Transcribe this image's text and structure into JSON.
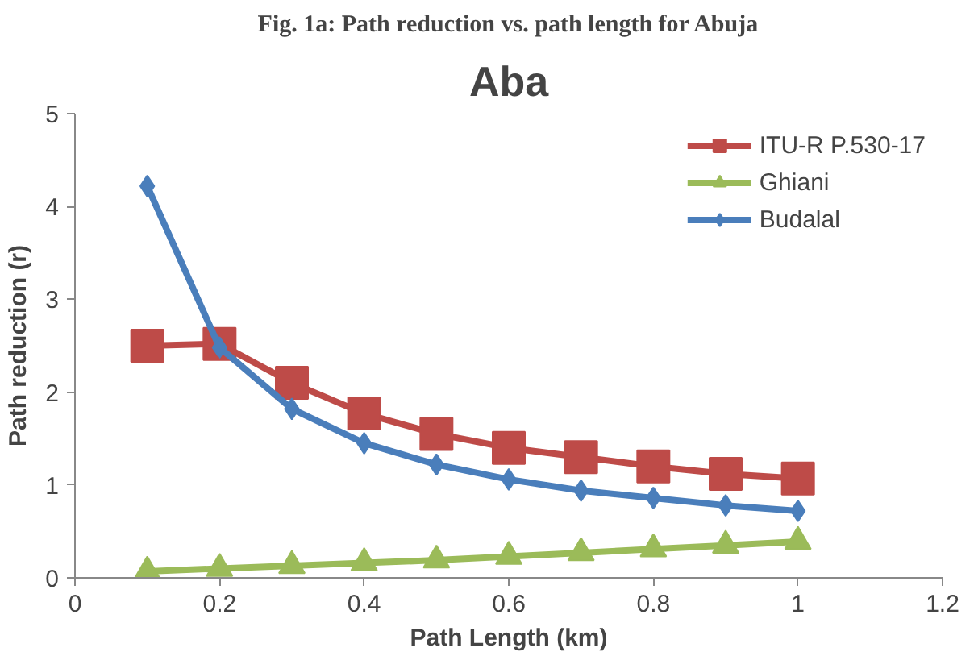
{
  "chart_data": {
    "type": "line",
    "title": "Aba",
    "subtitle": "Fig. 1a: Path reduction vs. path length for Abuja",
    "xlabel": "Path Length (km)",
    "ylabel": "Path reduction (r)",
    "x": [
      0.1,
      0.2,
      0.3,
      0.4,
      0.5,
      0.6,
      0.7,
      0.8,
      0.9,
      1.0
    ],
    "series": [
      {
        "name": "ITU-R P.530-17",
        "color": "#be4b48",
        "marker": "square",
        "values": [
          2.5,
          2.52,
          2.1,
          1.77,
          1.55,
          1.4,
          1.3,
          1.2,
          1.12,
          1.07
        ]
      },
      {
        "name": "Ghiani",
        "color": "#9bbb59",
        "marker": "triangle",
        "values": [
          0.07,
          0.1,
          0.13,
          0.16,
          0.19,
          0.23,
          0.27,
          0.31,
          0.35,
          0.39
        ]
      },
      {
        "name": "Budalal",
        "color": "#4a7ebb",
        "marker": "diamond",
        "values": [
          4.22,
          2.48,
          1.82,
          1.45,
          1.22,
          1.06,
          0.94,
          0.86,
          0.78,
          0.72
        ]
      }
    ],
    "xlim": [
      0,
      1.2
    ],
    "xticks": [
      0,
      0.2,
      0.4,
      0.6,
      0.8,
      1,
      1.2
    ],
    "ylim": [
      0,
      5
    ],
    "yticks": [
      0,
      1,
      2,
      3,
      4,
      5
    ],
    "grid": false,
    "legend": "top right"
  }
}
